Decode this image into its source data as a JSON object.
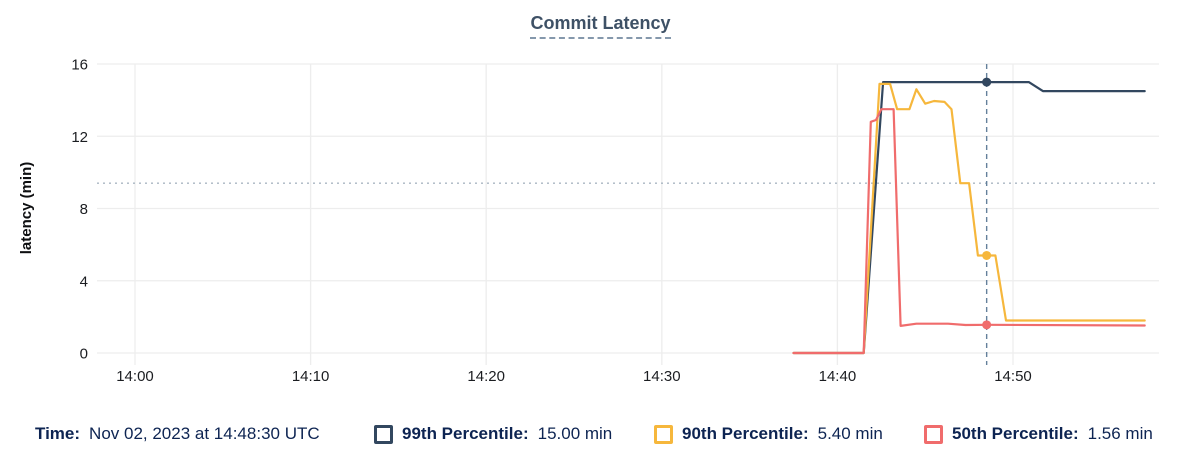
{
  "title": "Commit Latency",
  "legend": {
    "time_label": "Time:",
    "time_value": "Nov 02, 2023 at 14:48:30 UTC",
    "items": [
      {
        "label": "99th Percentile:",
        "value": "15.00 min",
        "color": "#32475f"
      },
      {
        "label": "90th Percentile:",
        "value": "5.40 min",
        "color": "#f6b73c"
      },
      {
        "label": "50th Percentile:",
        "value": "1.56 min",
        "color": "#f06c6c"
      }
    ]
  },
  "chart_data": {
    "type": "line",
    "title": "Commit Latency",
    "xlabel": "",
    "ylabel": "latency (min)",
    "x_unit": "minutes after 14:00 UTC",
    "ylim": [
      0,
      16
    ],
    "grid": true,
    "y_ticks": [
      0,
      4,
      8,
      12,
      16
    ],
    "x_ticks": [
      {
        "t": 0,
        "label": "14:00"
      },
      {
        "t": 10,
        "label": "14:10"
      },
      {
        "t": 20,
        "label": "14:20"
      },
      {
        "t": 30,
        "label": "14:30"
      },
      {
        "t": 40,
        "label": "14:40"
      },
      {
        "t": 50,
        "label": "14:50"
      }
    ],
    "threshold_line": {
      "value": 9.4,
      "style": "dotted",
      "color": "#a9b6c2"
    },
    "cursor": {
      "time": "14:48:30",
      "t": 48.5,
      "color": "#64809b",
      "points": [
        {
          "series": "99th Percentile",
          "value": 15.0
        },
        {
          "series": "90th Percentile",
          "value": 5.4
        },
        {
          "series": "50th Percentile",
          "value": 1.56
        }
      ]
    },
    "series": [
      {
        "name": "99th Percentile",
        "color": "#32475f",
        "points": [
          [
            37.5,
            0
          ],
          [
            41.5,
            0
          ],
          [
            42.6,
            15
          ],
          [
            50.9,
            15
          ],
          [
            51.7,
            14.5
          ],
          [
            57.5,
            14.5
          ]
        ]
      },
      {
        "name": "90th Percentile",
        "color": "#f6b73c",
        "points": [
          [
            37.5,
            0
          ],
          [
            41.5,
            0
          ],
          [
            42.4,
            14.9
          ],
          [
            43.0,
            14.9
          ],
          [
            43.4,
            13.5
          ],
          [
            44.1,
            13.5
          ],
          [
            44.5,
            14.6
          ],
          [
            45.0,
            13.8
          ],
          [
            45.5,
            13.95
          ],
          [
            46.1,
            13.9
          ],
          [
            46.5,
            13.5
          ],
          [
            47.0,
            9.4
          ],
          [
            47.5,
            9.4
          ],
          [
            48.0,
            5.4
          ],
          [
            49.0,
            5.4
          ],
          [
            49.6,
            1.8
          ],
          [
            57.5,
            1.8
          ]
        ]
      },
      {
        "name": "50th Percentile",
        "color": "#f06c6c",
        "points": [
          [
            37.5,
            0
          ],
          [
            41.5,
            0
          ],
          [
            41.9,
            12.8
          ],
          [
            42.2,
            12.9
          ],
          [
            42.5,
            13.5
          ],
          [
            43.2,
            13.5
          ],
          [
            43.6,
            1.5
          ],
          [
            44.5,
            1.62
          ],
          [
            46.3,
            1.62
          ],
          [
            47.3,
            1.55
          ],
          [
            48.6,
            1.56
          ],
          [
            57.5,
            1.52
          ]
        ]
      }
    ]
  }
}
